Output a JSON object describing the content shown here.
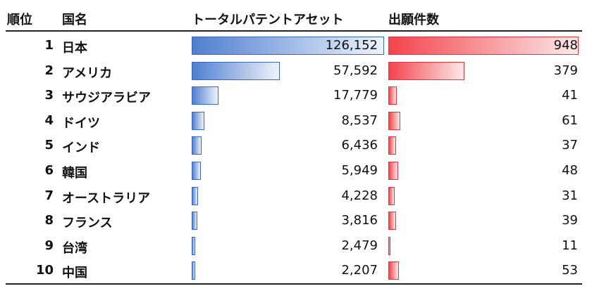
{
  "headers": {
    "rank": "順位",
    "country": "国名",
    "patent_asset": "トータルパテントアセット",
    "applications": "出願件数"
  },
  "chart_data": {
    "type": "table",
    "columns": [
      "順位",
      "国名",
      "トータルパテントアセット",
      "出願件数"
    ],
    "rows": [
      {
        "rank": "1",
        "country": "日本",
        "patent_asset": 126152,
        "patent_asset_label": "126,152",
        "applications": 948,
        "applications_label": "948"
      },
      {
        "rank": "2",
        "country": "アメリカ",
        "patent_asset": 57592,
        "patent_asset_label": "57,592",
        "applications": 379,
        "applications_label": "379"
      },
      {
        "rank": "3",
        "country": "サウジアラビア",
        "patent_asset": 17779,
        "patent_asset_label": "17,779",
        "applications": 41,
        "applications_label": "41"
      },
      {
        "rank": "4",
        "country": "ドイツ",
        "patent_asset": 8537,
        "patent_asset_label": "8,537",
        "applications": 61,
        "applications_label": "61"
      },
      {
        "rank": "5",
        "country": "インド",
        "patent_asset": 6436,
        "patent_asset_label": "6,436",
        "applications": 37,
        "applications_label": "37"
      },
      {
        "rank": "6",
        "country": "韓国",
        "patent_asset": 5949,
        "patent_asset_label": "5,949",
        "applications": 48,
        "applications_label": "48"
      },
      {
        "rank": "7",
        "country": "オーストラリア",
        "patent_asset": 4228,
        "patent_asset_label": "4,228",
        "applications": 31,
        "applications_label": "31"
      },
      {
        "rank": "8",
        "country": "フランス",
        "patent_asset": 3816,
        "patent_asset_label": "3,816",
        "applications": 39,
        "applications_label": "39"
      },
      {
        "rank": "9",
        "country": "台湾",
        "patent_asset": 2479,
        "patent_asset_label": "2,479",
        "applications": 11,
        "applications_label": "11"
      },
      {
        "rank": "10",
        "country": "中国",
        "patent_asset": 2207,
        "patent_asset_label": "2,207",
        "applications": 53,
        "applications_label": "53"
      }
    ],
    "colors": {
      "patent_asset": "#4f7fd0",
      "applications": "#f2444b"
    }
  }
}
